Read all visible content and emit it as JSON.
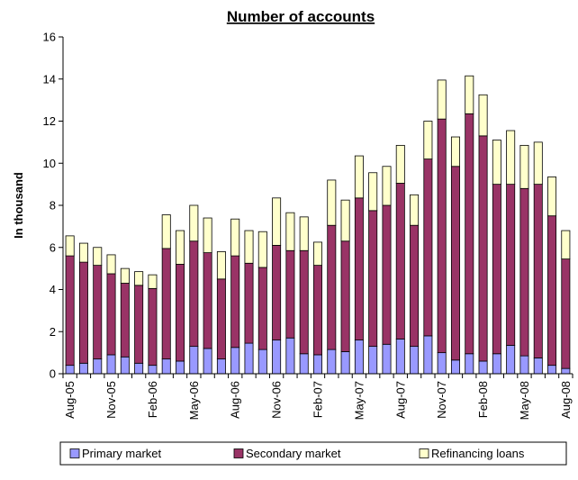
{
  "chart_data": {
    "type": "bar",
    "stacked": true,
    "title": "Number of accounts",
    "xlabel": "",
    "ylabel": "In thousand",
    "ylim": [
      0,
      16
    ],
    "yticks": [
      0,
      2,
      4,
      6,
      8,
      10,
      12,
      14,
      16
    ],
    "grid": false,
    "legend_position": "bottom",
    "categories": [
      "Aug-05",
      "Sep-05",
      "Oct-05",
      "Nov-05",
      "Dec-05",
      "Jan-06",
      "Feb-06",
      "Mar-06",
      "Apr-06",
      "May-06",
      "Jun-06",
      "Jul-06",
      "Aug-06",
      "Sep-06",
      "Oct-06",
      "Nov-06",
      "Dec-06",
      "Jan-07",
      "Feb-07",
      "Mar-07",
      "Apr-07",
      "May-07",
      "Jun-07",
      "Jul-07",
      "Aug-07",
      "Sep-07",
      "Oct-07",
      "Nov-07",
      "Dec-07",
      "Jan-08",
      "Feb-08",
      "Mar-08",
      "Apr-08",
      "May-08",
      "Jun-08",
      "Jul-08",
      "Aug-08"
    ],
    "tick_labels": [
      "Aug-05",
      "Nov-05",
      "Feb-06",
      "May-06",
      "Aug-06",
      "Nov-06",
      "Feb-07",
      "May-07",
      "Aug-07",
      "Nov-07",
      "Feb-08",
      "May-08",
      "Aug-08"
    ],
    "series": [
      {
        "name": "Primary market",
        "color": "#9999ff",
        "values": [
          0.4,
          0.5,
          0.7,
          0.9,
          0.8,
          0.5,
          0.4,
          0.7,
          0.6,
          1.3,
          1.2,
          0.7,
          1.25,
          1.45,
          1.15,
          1.6,
          1.7,
          0.95,
          0.9,
          1.15,
          1.05,
          1.6,
          1.3,
          1.4,
          1.65,
          1.3,
          1.8,
          1.0,
          0.65,
          0.95,
          0.6,
          0.95,
          1.35,
          0.85,
          0.75,
          0.4,
          0.25
        ]
      },
      {
        "name": "Secondary market",
        "color": "#993366",
        "values": [
          5.2,
          4.8,
          4.45,
          3.85,
          3.5,
          3.7,
          3.65,
          5.25,
          4.6,
          5.0,
          4.55,
          3.8,
          4.35,
          3.8,
          3.9,
          4.5,
          4.15,
          4.9,
          4.25,
          5.9,
          5.25,
          6.75,
          6.45,
          6.6,
          7.4,
          5.75,
          8.4,
          11.1,
          9.2,
          11.4,
          10.7,
          8.05,
          7.65,
          7.95,
          8.25,
          7.1,
          5.2
        ]
      },
      {
        "name": "Refinancing loans",
        "color": "#ffffcc",
        "values": [
          0.95,
          0.9,
          0.85,
          0.9,
          0.7,
          0.65,
          0.65,
          1.6,
          1.6,
          1.7,
          1.65,
          1.3,
          1.75,
          1.55,
          1.7,
          2.25,
          1.8,
          1.6,
          1.1,
          2.15,
          1.95,
          2.0,
          1.8,
          1.85,
          1.8,
          1.45,
          1.8,
          1.85,
          1.4,
          1.8,
          1.95,
          2.1,
          2.55,
          2.05,
          2.0,
          1.85,
          1.35
        ]
      }
    ]
  }
}
